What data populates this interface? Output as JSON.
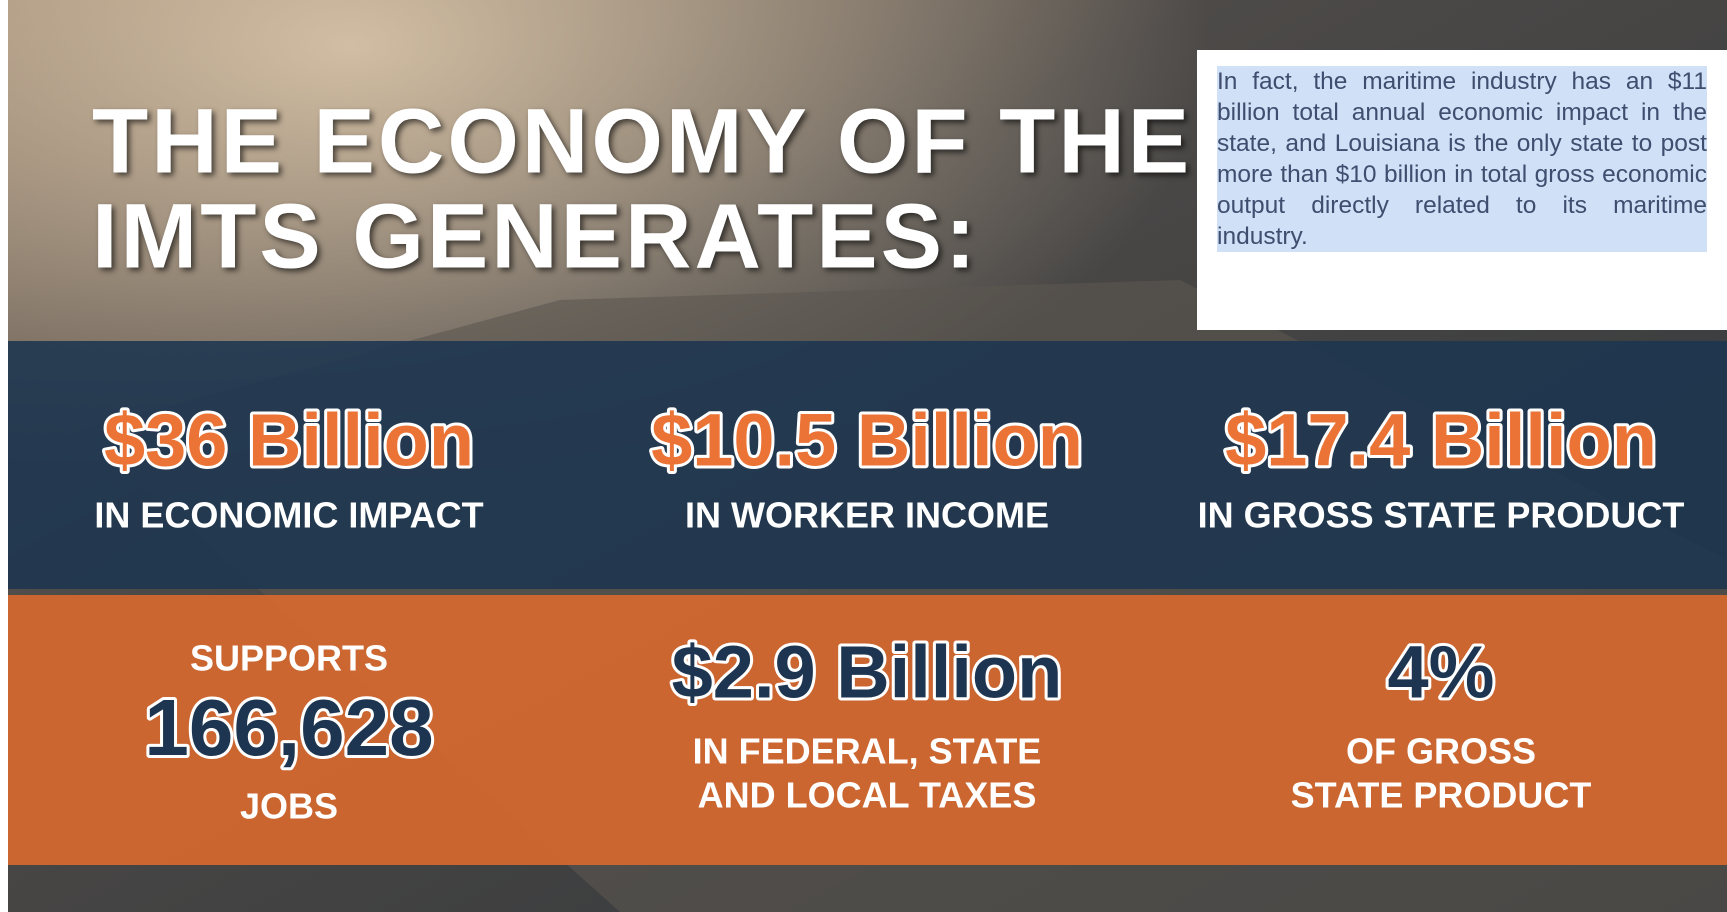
{
  "headline": {
    "lines": [
      "THE ECONOMY OF THE",
      "IMTS GENERATES:"
    ]
  },
  "callout": {
    "text": "In fact, the maritime industry has an $11 billion total annual economic impact in the state, and Louisiana is the only state to post more than $10 billion in total gross economic output directly related to its maritime industry."
  },
  "stats_top": [
    {
      "value": "$36 Billion",
      "caption": "IN ECONOMIC IMPACT"
    },
    {
      "value": "$10.5 Billion",
      "caption": "IN WORKER INCOME"
    },
    {
      "value": "$17.4 Billion",
      "caption": "IN GROSS STATE PRODUCT"
    }
  ],
  "stats_bottom": [
    {
      "above": "SUPPORTS",
      "value": "166,628",
      "caption": [
        "JOBS"
      ]
    },
    {
      "value": "$2.9 Billion",
      "caption": [
        "IN FEDERAL, STATE",
        "AND LOCAL TAXES"
      ]
    },
    {
      "value": "4%",
      "caption": [
        "OF GROSS",
        "STATE PRODUCT"
      ]
    }
  ]
}
